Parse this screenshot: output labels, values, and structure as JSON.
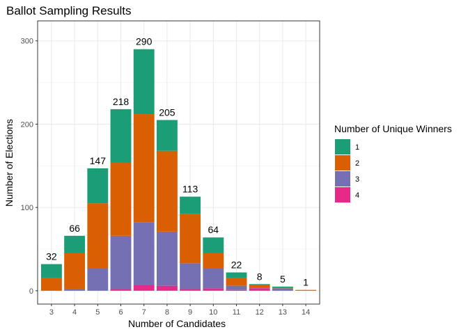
{
  "chart_data": {
    "type": "bar",
    "stacked": true,
    "title": "Ballot Sampling Results",
    "xlabel": "Number of Candidates",
    "ylabel": "Number of Elections",
    "categories": [
      "3",
      "4",
      "5",
      "6",
      "7",
      "8",
      "9",
      "10",
      "11",
      "12",
      "13",
      "14"
    ],
    "series": [
      {
        "name": "1",
        "color": "#1b9e77",
        "values": [
          17,
          21,
          42,
          64,
          78,
          37,
          21,
          19,
          7,
          1,
          1,
          0
        ]
      },
      {
        "name": "2",
        "color": "#d95f02",
        "values": [
          15,
          43,
          78,
          88,
          130,
          97,
          59,
          18,
          9,
          3,
          1,
          1
        ]
      },
      {
        "name": "3",
        "color": "#7570b3",
        "values": [
          0,
          2,
          27,
          64,
          75,
          65,
          31,
          24,
          5,
          1,
          3,
          0
        ]
      },
      {
        "name": "4",
        "color": "#e7298a",
        "values": [
          0,
          0,
          0,
          2,
          7,
          6,
          2,
          3,
          1,
          3,
          0,
          0
        ]
      }
    ],
    "totals": [
      32,
      66,
      147,
      218,
      290,
      205,
      113,
      64,
      22,
      8,
      5,
      1
    ],
    "ylim": [
      0,
      320
    ],
    "yticks": [
      0,
      100,
      200,
      300
    ],
    "grid": true,
    "legend": {
      "title": "Number of Unique Winners",
      "position": "right"
    }
  }
}
